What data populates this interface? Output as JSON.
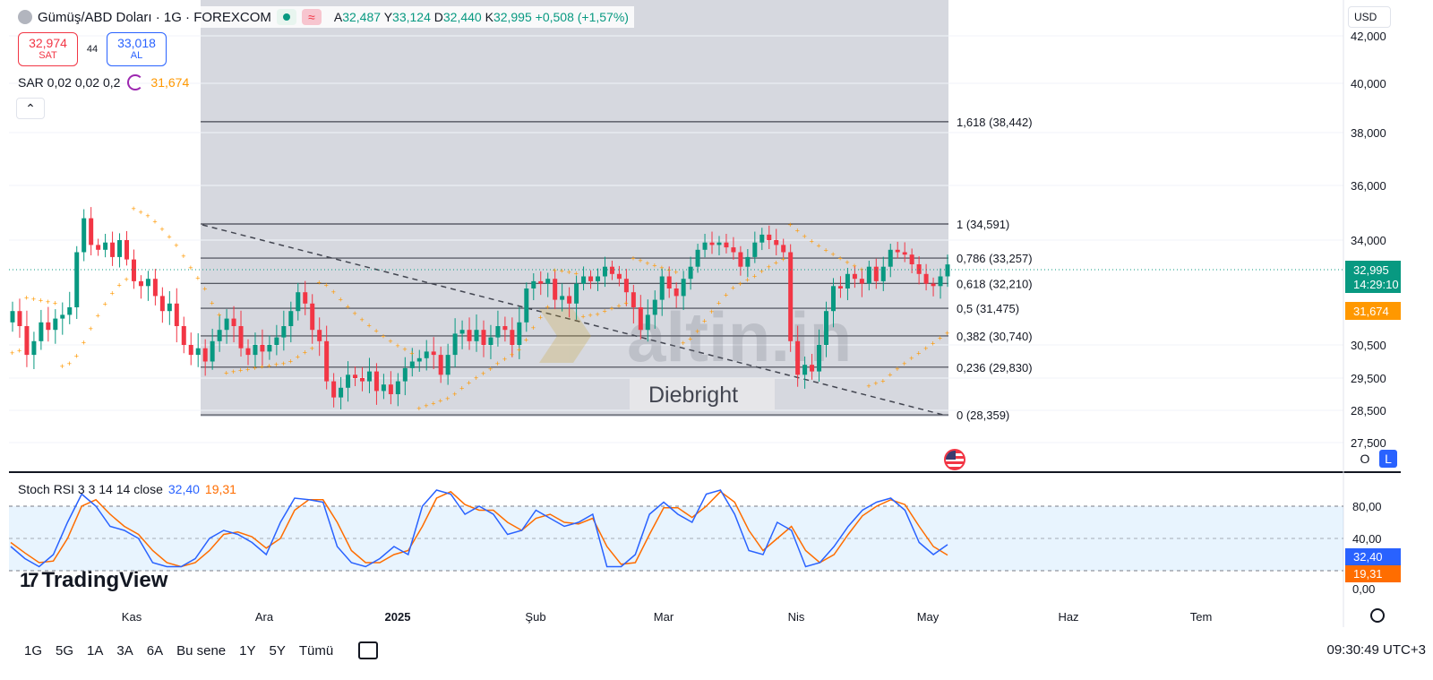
{
  "legend": {
    "title": "Gümüş/ABD Doları · 1G · FOREXCOM",
    "open_label": "A",
    "open": "32,487",
    "high_label": "Y",
    "high": "33,124",
    "low_label": "D",
    "low": "32,440",
    "close_label": "K",
    "close": "32,995",
    "change": "+0,508 (+1,57%)"
  },
  "trade": {
    "sell_price": "32,974",
    "sell_label": "SAT",
    "spread": "44",
    "buy_price": "33,018",
    "buy_label": "AL"
  },
  "sar_legend": {
    "label": "SAR 0,02 0,02 0,2",
    "value": "31,674"
  },
  "currency": "USD",
  "price_axis": [
    "42,000",
    "40,000",
    "38,000",
    "36,000",
    "34,000",
    "30,500",
    "29,500",
    "28,500",
    "27,500"
  ],
  "price_tags": {
    "last_price": "32,995",
    "countdown": "14:29:10",
    "sar_value": "31,674"
  },
  "fib_levels": [
    {
      "label": "1,618 (38,442)",
      "value": 38.442
    },
    {
      "label": "1 (34,591)",
      "value": 34.591
    },
    {
      "label": "0,786 (33,257)",
      "value": 33.257
    },
    {
      "label": "0,618 (32,210)",
      "value": 32.21
    },
    {
      "label": "0,5 (31,475)",
      "value": 31.475
    },
    {
      "label": "0,382 (30,740)",
      "value": 30.74
    },
    {
      "label": "0,236 (29,830)",
      "value": 29.83
    },
    {
      "label": "0 (28,359)",
      "value": 28.359
    }
  ],
  "watermark": {
    "brand": "altin.in",
    "author": "Diebright"
  },
  "stoch": {
    "label": "Stoch RSI 3 3 14 14 close",
    "k_value": "32,40",
    "d_value": "19,31",
    "axis": [
      "80,00",
      "40,00",
      "0,00"
    ]
  },
  "time_axis": [
    "Kas",
    "Ara",
    "2025",
    "Şub",
    "Mar",
    "Nis",
    "May",
    "Haz",
    "Tem"
  ],
  "scale_buttons": {
    "log": "O",
    "linear": "L"
  },
  "tv_brand": "TradingView",
  "timeframes": [
    "1G",
    "5G",
    "1A",
    "3A",
    "6A",
    "Bu sene",
    "1Y",
    "5Y",
    "Tümü"
  ],
  "clock": "09:30:49 UTC+3",
  "colors": {
    "up": "#089981",
    "down": "#f23645",
    "sar": "#ff9800",
    "stoch_k": "#2962ff",
    "stoch_d": "#ff6d00",
    "accent": "#2962ff"
  },
  "chart_data": {
    "type": "candlestick",
    "closes": [
      31.4,
      31.0,
      30.2,
      30.6,
      31.1,
      30.9,
      31.2,
      31.3,
      31.5,
      33.5,
      34.8,
      33.8,
      33.6,
      33.9,
      33.3,
      34.0,
      33.2,
      32.3,
      32.1,
      32.4,
      31.8,
      31.4,
      31.6,
      31.0,
      30.5,
      30.2,
      30.4,
      30.0,
      30.6,
      30.9,
      31.2,
      31.0,
      30.4,
      30.2,
      30.5,
      30.3,
      30.5,
      30.7,
      31.0,
      31.4,
      31.9,
      31.6,
      30.9,
      30.6,
      29.4,
      28.9,
      29.2,
      29.6,
      29.5,
      29.4,
      29.7,
      29.1,
      29.3,
      29.0,
      29.4,
      29.8,
      30.0,
      30.1,
      30.3,
      30.2,
      29.6,
      30.2,
      30.8,
      30.9,
      30.6,
      30.9,
      30.5,
      30.7,
      31.0,
      30.9,
      30.5,
      31.1,
      32.0,
      32.3,
      32.2,
      32.4,
      31.7,
      31.8,
      31.6,
      32.2,
      32.5,
      32.3,
      32.5,
      32.9,
      32.6,
      32.4,
      31.9,
      31.5,
      30.9,
      31.3,
      31.7,
      32.5,
      32.0,
      31.8,
      32.4,
      32.9,
      33.6,
      33.9,
      33.8,
      33.9,
      33.7,
      33.5,
      32.9,
      33.3,
      33.9,
      34.2,
      34.0,
      33.8,
      33.5,
      30.6,
      29.6,
      29.9,
      29.7,
      30.5,
      31.4,
      32.1,
      32.0,
      32.6,
      32.4,
      32.2,
      32.9,
      32.3,
      32.9,
      33.6,
      33.5,
      33.4,
      33.0,
      32.6,
      32.2,
      32.1,
      32.5,
      32.995
    ],
    "sar": "orange dotted trailing stops",
    "stoch_k": [
      30,
      15,
      5,
      20,
      60,
      95,
      80,
      55,
      50,
      40,
      10,
      5,
      5,
      15,
      40,
      50,
      45,
      35,
      20,
      60,
      90,
      88,
      85,
      30,
      10,
      5,
      15,
      30,
      20,
      80,
      100,
      95,
      70,
      80,
      70,
      45,
      50,
      75,
      65,
      55,
      60,
      70,
      5,
      5,
      20,
      70,
      85,
      70,
      60,
      95,
      100,
      70,
      25,
      20,
      60,
      50,
      5,
      10,
      30,
      55,
      75,
      85,
      90,
      75,
      35,
      20,
      32.4
    ],
    "stoch_d": [
      35,
      22,
      10,
      12,
      40,
      80,
      88,
      70,
      55,
      45,
      25,
      10,
      5,
      10,
      25,
      45,
      48,
      42,
      28,
      40,
      75,
      88,
      88,
      60,
      25,
      10,
      10,
      20,
      25,
      55,
      90,
      98,
      82,
      75,
      75,
      60,
      50,
      65,
      70,
      60,
      58,
      65,
      30,
      8,
      10,
      45,
      78,
      78,
      66,
      80,
      98,
      85,
      50,
      25,
      40,
      55,
      25,
      10,
      20,
      45,
      68,
      80,
      88,
      82,
      55,
      30,
      19.31
    ],
    "ylim": [
      27.5,
      42.0
    ],
    "stoch_ylim": [
      0,
      100
    ]
  }
}
